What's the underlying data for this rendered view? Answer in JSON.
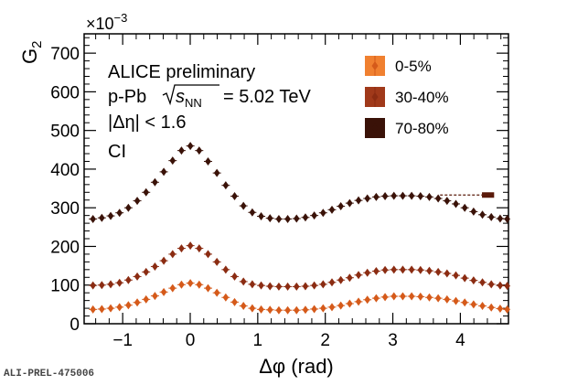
{
  "chart_data": {
    "type": "scatter",
    "title": "",
    "xlabel": "Δφ (rad)",
    "ylabel": "G",
    "ylabel_sub": "2",
    "y_multiplier": "×10",
    "y_multiplier_exp": "−3",
    "xlim": [
      -1.5708,
      4.7124
    ],
    "ylim": [
      0,
      750
    ],
    "x_ticks": [
      -1,
      0,
      1,
      2,
      3,
      4
    ],
    "x_tick_labels": [
      "−1",
      "0",
      "1",
      "2",
      "3",
      "4"
    ],
    "y_ticks": [
      0,
      100,
      200,
      300,
      400,
      500,
      600,
      700
    ],
    "y_tick_labels": [
      "0",
      "100",
      "200",
      "300",
      "400",
      "500",
      "600",
      "700"
    ],
    "grid": false,
    "legend_position": "top-right",
    "annotations": {
      "collab": "ALICE preliminary",
      "system": "p-Pb",
      "sqrt_s": "s",
      "sqrt_s_sub": "NN",
      "energy": "= 5.02 TeV",
      "eta_cut": "|Δη| < 1.6",
      "ci": "CI"
    },
    "series": [
      {
        "name": "0-5%",
        "color": "#d55a1a",
        "x": [
          -1.571,
          -1.4399,
          -1.3089,
          -1.1778,
          -1.0467,
          -0.9157,
          -0.7846,
          -0.6535,
          -0.5225,
          -0.3914,
          -0.2603,
          -0.1293,
          0.0018,
          0.1329,
          0.2639,
          0.395,
          0.5261,
          0.6571,
          0.7882,
          0.9193,
          1.0503,
          1.1814,
          1.3125,
          1.4435,
          1.5746,
          1.7057,
          1.8367,
          1.9678,
          2.0989,
          2.2299,
          2.361,
          2.4921,
          2.6231,
          2.7542,
          2.8853,
          3.0163,
          3.1474,
          3.2785,
          3.4095,
          3.5406,
          3.6717,
          3.8027,
          3.9338,
          4.0649,
          4.1959,
          4.327,
          4.4581,
          4.5891,
          4.6938
        ],
        "y": [
          37,
          37,
          38,
          40,
          43,
          48,
          55,
          63,
          72,
          82,
          92,
          101,
          105,
          101,
          92,
          80,
          68,
          56,
          46,
          40,
          37,
          36,
          35,
          35,
          35,
          36,
          38,
          40,
          43,
          47,
          52,
          57,
          62,
          66,
          69,
          71,
          71,
          71,
          70,
          68,
          66,
          63,
          59,
          55,
          50,
          46,
          42,
          39,
          37
        ]
      },
      {
        "name": "30-40%",
        "color": "#8b2c12",
        "x": [
          -1.571,
          -1.4399,
          -1.3089,
          -1.1778,
          -1.0467,
          -0.9157,
          -0.7846,
          -0.6535,
          -0.5225,
          -0.3914,
          -0.2603,
          -0.1293,
          0.0018,
          0.1329,
          0.2639,
          0.395,
          0.5261,
          0.6571,
          0.7882,
          0.9193,
          1.0503,
          1.1814,
          1.3125,
          1.4435,
          1.5746,
          1.7057,
          1.8367,
          1.9678,
          2.0989,
          2.2299,
          2.361,
          2.4921,
          2.6231,
          2.7542,
          2.8853,
          3.0163,
          3.1474,
          3.2785,
          3.4095,
          3.5406,
          3.6717,
          3.8027,
          3.9338,
          4.0649,
          4.1959,
          4.327,
          4.4581,
          4.5891,
          4.6938
        ],
        "y": [
          98,
          99,
          100,
          102,
          106,
          113,
          122,
          134,
          148,
          163,
          180,
          195,
          202,
          195,
          180,
          160,
          140,
          122,
          109,
          102,
          99,
          97,
          96,
          96,
          96,
          97,
          99,
          102,
          107,
          113,
          119,
          126,
          132,
          136,
          139,
          140,
          140,
          140,
          139,
          137,
          134,
          130,
          125,
          118,
          112,
          107,
          102,
          99,
          98
        ]
      },
      {
        "name": "70-80%",
        "color": "#3a1208",
        "x": [
          -1.571,
          -1.4399,
          -1.3089,
          -1.1778,
          -1.0467,
          -0.9157,
          -0.7846,
          -0.6535,
          -0.5225,
          -0.3914,
          -0.2603,
          -0.1293,
          0.0018,
          0.1329,
          0.2639,
          0.395,
          0.5261,
          0.6571,
          0.7882,
          0.9193,
          1.0503,
          1.1814,
          1.3125,
          1.4435,
          1.5746,
          1.7057,
          1.8367,
          1.9678,
          2.0989,
          2.2299,
          2.361,
          2.4921,
          2.6231,
          2.7542,
          2.8853,
          3.0163,
          3.1474,
          3.2785,
          3.4095,
          3.5406,
          3.6717,
          3.8027,
          3.9338,
          4.0649,
          4.1959,
          4.327,
          4.4581,
          4.5891,
          4.6938
        ],
        "y": [
          270,
          271,
          274,
          279,
          287,
          300,
          318,
          340,
          366,
          393,
          422,
          448,
          460,
          448,
          420,
          390,
          358,
          330,
          305,
          288,
          278,
          273,
          271,
          271,
          272,
          275,
          280,
          287,
          295,
          304,
          312,
          319,
          324,
          328,
          330,
          331,
          331,
          331,
          330,
          328,
          324,
          318,
          310,
          300,
          290,
          282,
          276,
          272,
          271
        ]
      }
    ],
    "flow_marker": {
      "x_from": 3.7,
      "x_to": 4.32,
      "x_block_end": 4.5,
      "y": 333,
      "color": "#5a1a0a"
    }
  },
  "watermark": "ALI-PREL-475006"
}
